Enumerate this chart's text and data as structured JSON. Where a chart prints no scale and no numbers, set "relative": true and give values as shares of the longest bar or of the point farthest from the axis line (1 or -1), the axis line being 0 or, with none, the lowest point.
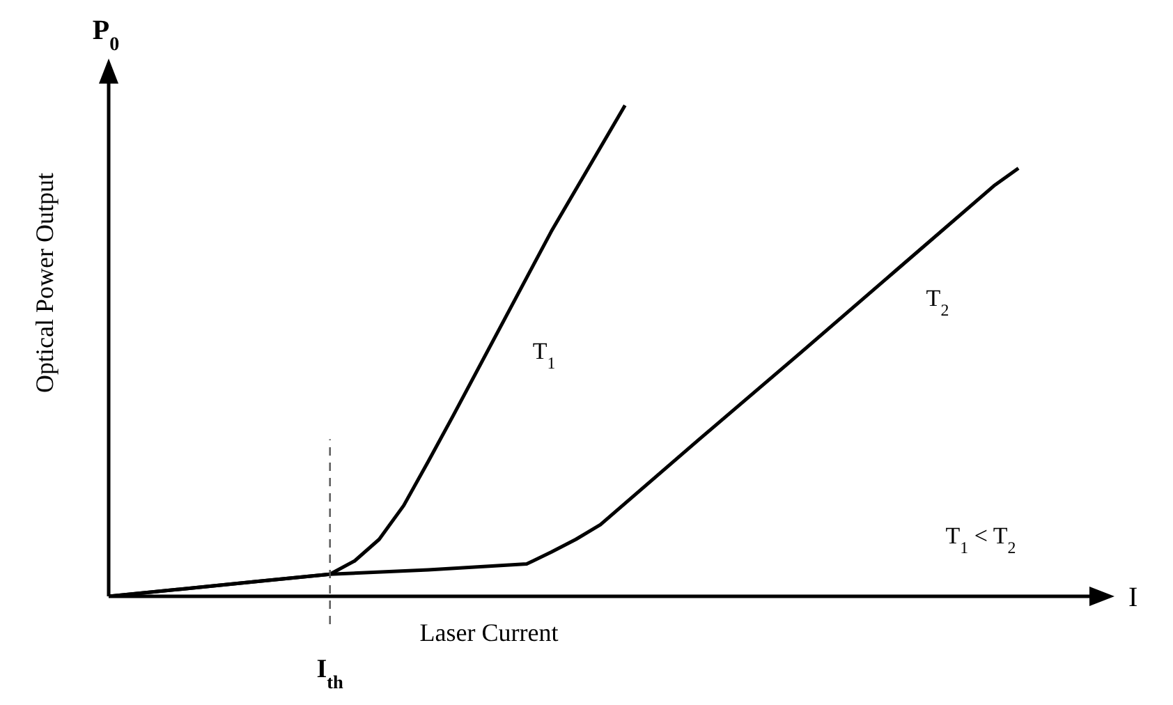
{
  "chart_data": {
    "type": "line",
    "relative": true,
    "xlabel": "Laser Current",
    "ylabel": "Optical Power Output",
    "categories": [
      null,
      null,
      null,
      null,
      null,
      null,
      null,
      null,
      null,
      null,
      null,
      null,
      null,
      null,
      null,
      null,
      null,
      null,
      null,
      null,
      null,
      null,
      null,
      null,
      null,
      null,
      null,
      null,
      null,
      null,
      null,
      null,
      null,
      null,
      null,
      null,
      null,
      null,
      null,
      null,
      null
    ],
    "series": [
      {
        "name": "T$_{1}$",
        "color": "#000000",
        "values": [
          0,
          null,
          null,
          0.015,
          null,
          null,
          0.03,
          null,
          null,
          0.045,
          0.072,
          0.116,
          0.185,
          0.275,
          0.367,
          null,
          0.555,
          null,
          0.743,
          null,
          null,
          1,
          null,
          null,
          null,
          null,
          null,
          null,
          null,
          null,
          null,
          null,
          null,
          null,
          null,
          null,
          null,
          null,
          null,
          null,
          null
        ]
      },
      {
        "name": "T$_{2}$",
        "color": "#000000",
        "values": [
          0,
          null,
          null,
          0.015,
          null,
          null,
          0.03,
          null,
          null,
          0.045,
          null,
          null,
          null,
          0.054,
          null,
          null,
          null,
          0.066,
          0.09,
          0.116,
          0.146,
          null,
          null,
          null,
          0.319,
          null,
          null,
          null,
          0.49,
          null,
          null,
          null,
          0.663,
          null,
          null,
          null,
          0.836,
          0.872,
          null,
          null,
          null
        ]
      }
    ],
    "annotations": [
      "P$_{0}$",
      "I",
      "T$_{1}$ < T$_{2}$",
      "I$_{th}$"
    ],
    "grid": false,
    "legend": false,
    "marker": "none",
    "line_style": "solid"
  }
}
